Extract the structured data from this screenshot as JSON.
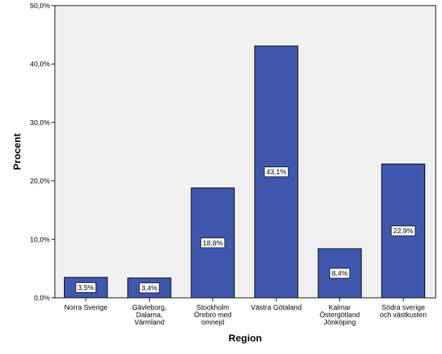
{
  "chart_data": {
    "type": "bar",
    "xlabel": "Region",
    "ylabel": "Procent",
    "ylim": [
      0,
      50
    ],
    "yticks": [
      0,
      10,
      20,
      30,
      40,
      50
    ],
    "ytick_labels": [
      "0,0%",
      "10,0%",
      "20,0%",
      "30,0%",
      "40,0%",
      "50,0%"
    ],
    "categories": [
      [
        "Norra Sverige"
      ],
      [
        "Gävleborg,",
        "Dalarna,",
        "Värmland"
      ],
      [
        "Stockholm",
        "Örebro med",
        "omnejd"
      ],
      [
        "Västra Götaland"
      ],
      [
        "Kalmar",
        "Östergötland",
        "Jönköping"
      ],
      [
        "Södra sverige",
        "och västkusten"
      ]
    ],
    "values": [
      3.5,
      3.4,
      18.8,
      43.1,
      8.4,
      22.9
    ],
    "data_labels": [
      "3,5%",
      "3,4%",
      "18,8%",
      "43,1%",
      "8,4%",
      "22,9%"
    ],
    "bar_color": "#3f57ae",
    "plot_background": "#f0f0f0",
    "grid": false
  }
}
